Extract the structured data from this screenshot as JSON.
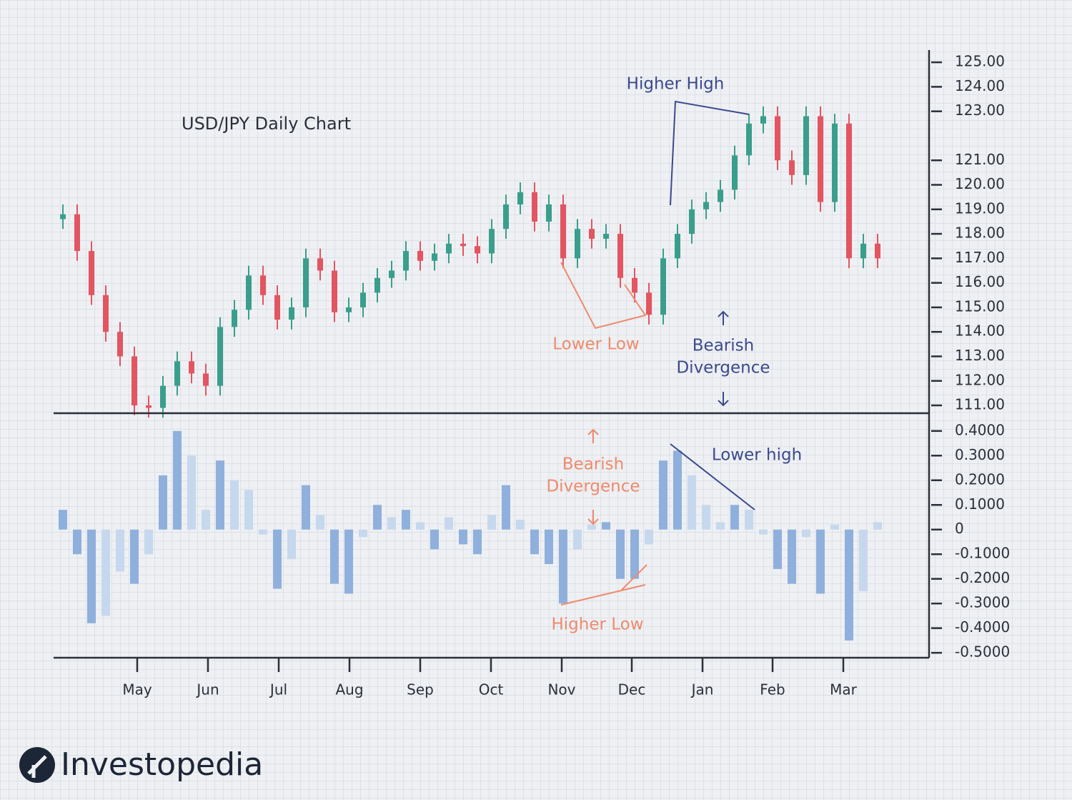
{
  "chart_data": [
    {
      "type": "candlestick",
      "title": "USD/JPY Daily Chart",
      "open": [
        118.6,
        118.8,
        117.3,
        115.5,
        114.0,
        113.0,
        111.0,
        110.9,
        111.8,
        112.8,
        112.3,
        111.8,
        114.2,
        114.9,
        116.3,
        115.5,
        114.5,
        115.0,
        117.0,
        116.5,
        114.8,
        115.0,
        115.6,
        116.2,
        116.5,
        117.3,
        116.9,
        117.2,
        117.6,
        117.5,
        117.2,
        118.2,
        119.2,
        119.7,
        118.5,
        119.2,
        117.0,
        118.2,
        117.8,
        118.0,
        116.2,
        115.6,
        114.7,
        117.0,
        118.0,
        119.0,
        119.3,
        119.8,
        121.2,
        122.5,
        122.8,
        121.0,
        120.4,
        122.8,
        119.3,
        122.5,
        117.0,
        117.6
      ],
      "high": [
        119.2,
        119.2,
        117.7,
        115.9,
        114.4,
        113.4,
        111.4,
        112.2,
        113.2,
        113.2,
        112.7,
        114.6,
        115.3,
        116.7,
        116.7,
        115.9,
        115.4,
        117.4,
        117.4,
        116.9,
        115.4,
        116.0,
        116.6,
        116.9,
        117.7,
        117.7,
        117.6,
        118.0,
        118.0,
        117.9,
        118.6,
        119.6,
        120.1,
        120.1,
        119.6,
        119.6,
        118.6,
        118.6,
        118.4,
        118.4,
        116.6,
        116.0,
        117.4,
        118.4,
        119.4,
        119.7,
        120.2,
        121.6,
        122.9,
        123.2,
        123.2,
        121.4,
        123.2,
        123.2,
        122.9,
        122.9,
        118.0,
        118.0
      ],
      "low": [
        118.2,
        116.9,
        115.1,
        113.6,
        112.6,
        110.6,
        110.5,
        110.5,
        111.4,
        111.9,
        111.4,
        111.4,
        113.8,
        114.5,
        115.1,
        114.1,
        114.1,
        114.6,
        116.1,
        114.4,
        114.4,
        114.6,
        115.2,
        115.8,
        116.1,
        116.5,
        116.5,
        116.8,
        117.1,
        116.8,
        116.8,
        117.8,
        118.8,
        118.1,
        118.1,
        116.6,
        116.6,
        117.4,
        117.4,
        115.8,
        115.2,
        114.3,
        114.3,
        116.6,
        117.6,
        118.6,
        118.9,
        119.4,
        120.8,
        122.1,
        120.6,
        120.0,
        120.0,
        118.9,
        118.9,
        116.6,
        116.6,
        116.6
      ],
      "close": [
        118.8,
        117.3,
        115.5,
        114.0,
        113.0,
        111.0,
        110.9,
        111.8,
        112.8,
        112.3,
        111.8,
        114.2,
        114.9,
        116.3,
        115.5,
        114.5,
        115.0,
        117.0,
        116.5,
        114.8,
        115.0,
        115.6,
        116.2,
        116.5,
        117.3,
        116.9,
        117.2,
        117.6,
        117.5,
        117.2,
        118.2,
        119.2,
        119.7,
        118.5,
        119.2,
        117.0,
        118.2,
        117.8,
        118.0,
        116.2,
        115.6,
        114.7,
        117.0,
        118.0,
        119.0,
        119.3,
        119.8,
        121.2,
        122.5,
        122.8,
        121.0,
        120.4,
        122.8,
        119.3,
        122.5,
        117.0,
        117.6,
        117.0
      ],
      "up_color": "#3a9e8c",
      "down_color": "#e25561",
      "xlim": [
        -0.65,
        60.6
      ],
      "ylim": [
        110.68,
        125.5
      ],
      "yticks": [
        {
          "value": 125,
          "label": "125.00"
        },
        {
          "value": 124,
          "label": "124.00"
        },
        {
          "value": 123,
          "label": "123.00"
        },
        {
          "value": 121,
          "label": "121.00"
        },
        {
          "value": 120,
          "label": "120.00"
        },
        {
          "value": 119,
          "label": "119.00"
        },
        {
          "value": 118,
          "label": "118.00"
        },
        {
          "value": 117,
          "label": "117.00"
        },
        {
          "value": 116,
          "label": "116.00"
        },
        {
          "value": 115,
          "label": "115.00"
        },
        {
          "value": 114,
          "label": "114.00"
        },
        {
          "value": 113,
          "label": "113.00"
        },
        {
          "value": 112,
          "label": "112.00"
        },
        {
          "value": 111,
          "label": "111.00"
        }
      ],
      "annotations": [
        {
          "text": "Higher High"
        },
        {
          "text": "Lower Low"
        },
        {
          "lines": [
            "Bearish",
            "Divergence"
          ]
        }
      ]
    },
    {
      "type": "bar",
      "values": [
        0.08,
        -0.1,
        -0.38,
        -0.35,
        -0.17,
        -0.22,
        -0.1,
        0.22,
        0.4,
        0.3,
        0.08,
        0.28,
        0.2,
        0.16,
        -0.02,
        -0.24,
        -0.12,
        0.18,
        0.06,
        -0.22,
        -0.26,
        -0.03,
        0.1,
        0.05,
        0.08,
        0.03,
        -0.08,
        0.05,
        -0.06,
        -0.1,
        0.06,
        0.18,
        0.04,
        -0.1,
        -0.14,
        -0.3,
        -0.08,
        0.02,
        0.03,
        -0.2,
        -0.2,
        -0.06,
        0.28,
        0.32,
        0.22,
        0.1,
        0.03,
        0.1,
        0.08,
        -0.02,
        -0.16,
        -0.22,
        -0.03,
        -0.26,
        0.02,
        -0.45,
        -0.25,
        0.03
      ],
      "color": "#8fb0dc",
      "fade_color": "#c6d8ee",
      "xlim": [
        -0.65,
        60.6
      ],
      "xticks": [
        {
          "value": 5.2,
          "label": "May"
        },
        {
          "value": 10.15,
          "label": "Jun"
        },
        {
          "value": 15.1,
          "label": "Jul"
        },
        {
          "value": 20.05,
          "label": "Aug"
        },
        {
          "value": 25,
          "label": "Sep"
        },
        {
          "value": 29.95,
          "label": "Oct"
        },
        {
          "value": 34.9,
          "label": "Nov"
        },
        {
          "value": 39.8,
          "label": "Dec"
        },
        {
          "value": 44.75,
          "label": "Jan"
        },
        {
          "value": 49.65,
          "label": "Feb"
        },
        {
          "value": 54.6,
          "label": "Mar"
        }
      ],
      "ylim": [
        -0.52,
        0.472
      ],
      "yticks": [
        {
          "value": 0.4,
          "label": "0.4000"
        },
        {
          "value": 0.3,
          "label": "0.3000"
        },
        {
          "value": 0.2,
          "label": "0.2000"
        },
        {
          "value": 0.1,
          "label": "0.1000"
        },
        0,
        {
          "value": -0.1,
          "label": "-0.1000"
        },
        {
          "value": -0.2,
          "label": "-0.2000"
        },
        {
          "value": -0.3,
          "label": "-0.3000"
        },
        {
          "value": -0.4,
          "label": "-0.4000"
        },
        {
          "value": -0.5,
          "label": "-0.5000"
        }
      ],
      "annotations": [
        {
          "lines": [
            "Bearish",
            "Divergence"
          ]
        },
        {
          "text": "Lower high"
        },
        {
          "text": "Higher Low"
        }
      ]
    }
  ],
  "brand": "Investopedia"
}
